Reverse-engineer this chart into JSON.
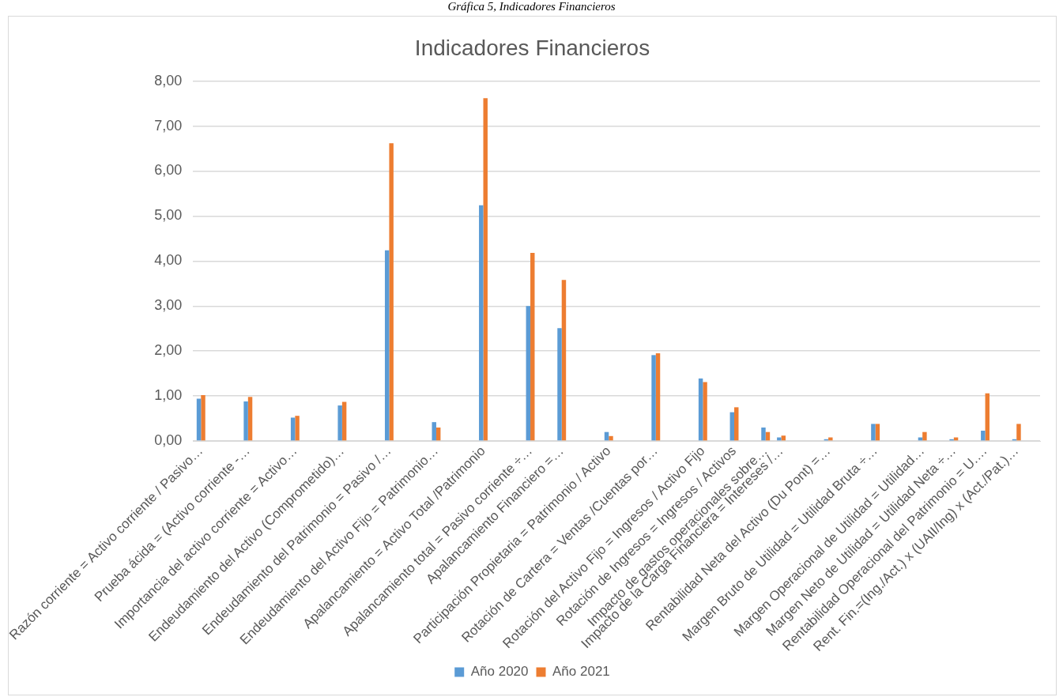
{
  "chart_data": {
    "type": "bar",
    "title": "Indicadores Financieros",
    "annotations": [
      "Gráfica 5, Indicadores Financieros"
    ],
    "categories": [
      "Razón corriente = Activo corriente / Pasivo…",
      null,
      null,
      "Prueba ácida = (Activo corriente -…",
      null,
      null,
      "Importancia del activo corriente = Activo…",
      null,
      null,
      "Endeudamiento del Activo (Comprometido)…",
      null,
      null,
      "Endeudamiento del Patrimonio = Pasivo /…",
      null,
      null,
      "Endeudamiento del Activo Fijo = Patrimonio…",
      null,
      null,
      "Apalancamiento = Activo Total /Patrimonio",
      null,
      null,
      "Apalancamiento total = Pasivo corriente ÷…",
      null,
      "Apalancamiento Financiero =…",
      null,
      null,
      "Participación Propietaria = Patrimonio / Activo",
      null,
      null,
      "Rotación de Cartera = Ventas /Cuentas por…",
      null,
      null,
      "Rotación del Activo Fijo = Ingresos / Activo Fijo",
      null,
      "Rotación de Ingresos = Ingresos / Activos",
      null,
      "Impacto de gastos operacionales sobre…",
      "Impacto de la Carga Financiera = Intereses /…",
      null,
      null,
      "Rentabilidad Neta del Activo (Du Pont) =…",
      null,
      null,
      "Margen Bruto de Utilidad = Utilidad Bruta ÷…",
      null,
      null,
      "Margen Operacional de Utilidad = Utilidad…",
      null,
      "Margen Neto de Utilidad = Utilidad Neta ÷…",
      null,
      "Rentabilidad Operacional del Patrimonio = U.…",
      null,
      "Rent. Fin.=(Ing./Act.) x (UAII/Ing) x (Act./Pat.)…",
      null
    ],
    "series": [
      {
        "name": "Año 2020",
        "color": "#5b9bd5",
        "values": [
          0.94,
          null,
          null,
          0.88,
          null,
          null,
          0.52,
          null,
          null,
          0.79,
          null,
          null,
          4.24,
          null,
          null,
          0.42,
          null,
          null,
          5.24,
          null,
          null,
          3.0,
          null,
          2.51,
          null,
          null,
          0.2,
          null,
          null,
          1.91,
          null,
          null,
          1.39,
          null,
          0.64,
          null,
          0.3,
          0.08,
          null,
          null,
          0.04,
          null,
          null,
          0.38,
          null,
          null,
          0.08,
          null,
          0.04,
          null,
          0.23,
          null,
          0.04,
          null
        ]
      },
      {
        "name": "Año 2021",
        "color": "#ed7d31",
        "values": [
          1.02,
          null,
          null,
          0.98,
          null,
          null,
          0.56,
          null,
          null,
          0.87,
          null,
          null,
          6.62,
          null,
          null,
          0.3,
          null,
          null,
          7.62,
          null,
          null,
          4.18,
          null,
          3.58,
          null,
          null,
          0.11,
          null,
          null,
          1.95,
          null,
          null,
          1.31,
          null,
          0.75,
          null,
          0.2,
          0.12,
          null,
          null,
          0.08,
          null,
          null,
          0.38,
          null,
          null,
          0.2,
          null,
          0.08,
          null,
          1.06,
          null,
          0.38,
          null
        ]
      }
    ],
    "ylim": [
      0,
      8
    ],
    "yticks": [
      {
        "value": 0,
        "label": "0,00"
      },
      {
        "value": 1,
        "label": "1,00"
      },
      {
        "value": 2,
        "label": "2,00"
      },
      {
        "value": 3,
        "label": "3,00"
      },
      {
        "value": 4,
        "label": "4,00"
      },
      {
        "value": 5,
        "label": "5,00"
      },
      {
        "value": 6,
        "label": "6,00"
      },
      {
        "value": 7,
        "label": "7,00"
      },
      {
        "value": 8,
        "label": "8,00"
      }
    ],
    "grid": "y",
    "legend": "bottom"
  }
}
